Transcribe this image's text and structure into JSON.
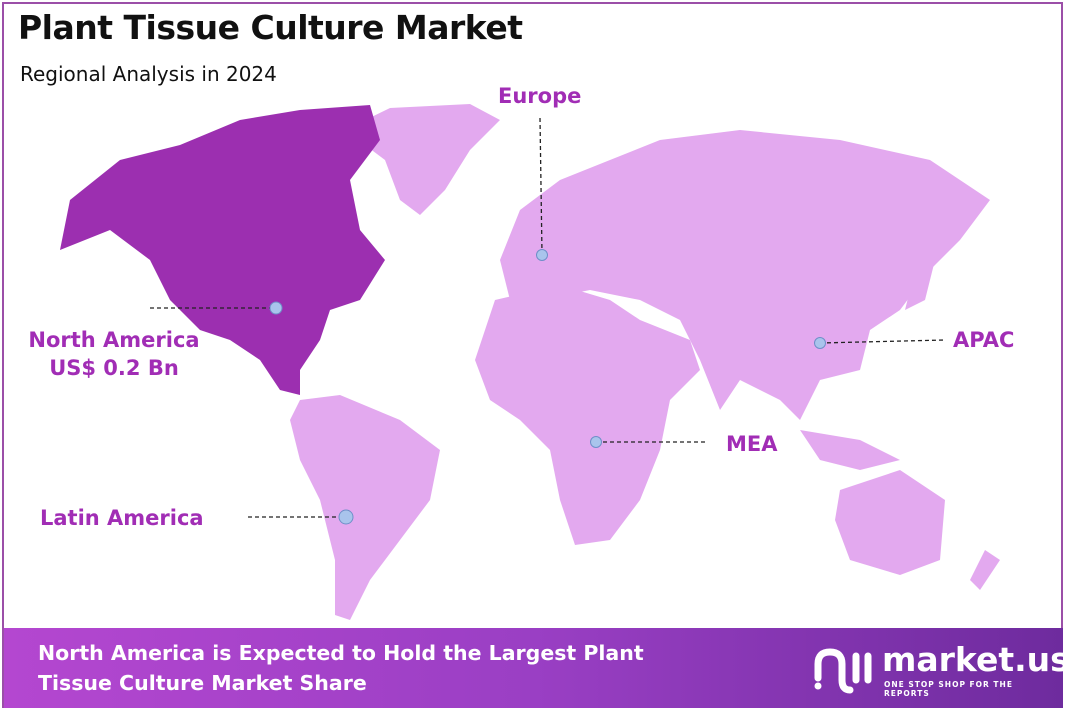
{
  "header": {
    "title": "Plant Tissue Culture Market",
    "subtitle": "Regional Analysis in 2024"
  },
  "colors": {
    "highlight_region": "#9c2fb0",
    "other_regions": "#e3a9ef",
    "label": "#a12db5",
    "marker": "#a9c4ec"
  },
  "regions": [
    {
      "id": "north-america",
      "label": "North America",
      "value": "US$ 0.2 Bn",
      "highlighted": true
    },
    {
      "id": "europe",
      "label": "Europe",
      "highlighted": false
    },
    {
      "id": "apac",
      "label": "APAC",
      "highlighted": false
    },
    {
      "id": "mea",
      "label": "MEA",
      "highlighted": false
    },
    {
      "id": "latin-america",
      "label": "Latin America",
      "highlighted": false
    }
  ],
  "footer": {
    "line1": "North America is Expected to Hold the Largest Plant",
    "line2": "Tissue Culture Market Share"
  },
  "logo": {
    "name": "market.us",
    "tagline": "ONE STOP SHOP FOR THE REPORTS"
  }
}
